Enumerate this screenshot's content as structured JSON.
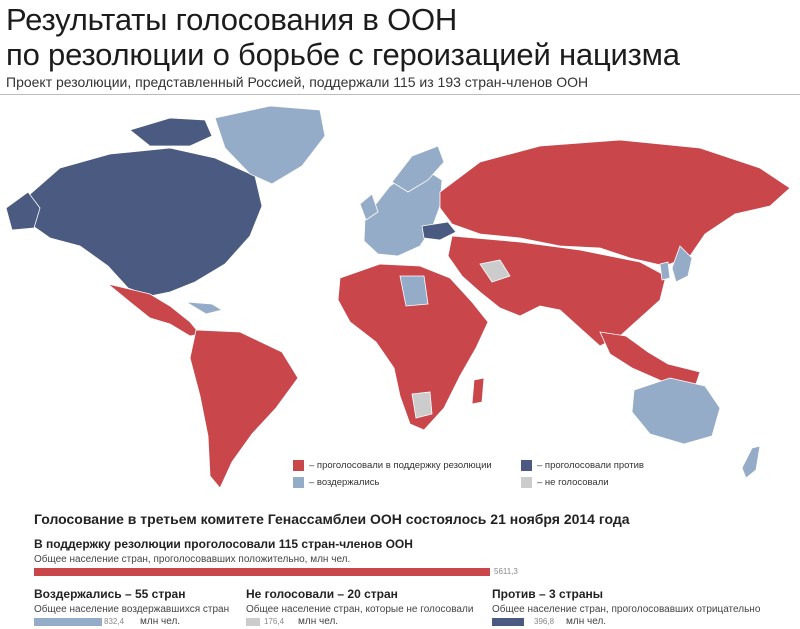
{
  "title_line1": "Результаты голосования в ООН",
  "title_line2": "по резолюции о борьбе с героизацией нацизма",
  "subtitle": "Проект резолюции, представленный Россией, поддержали 115 из 193 стран-членов ООН",
  "colors": {
    "support": "#c9474b",
    "abstain": "#95acc9",
    "against": "#4a5a80",
    "not_voted": "#cccccc",
    "ocean": "#ffffff"
  },
  "legend": {
    "support": "– проголосовали в поддержку резолюции",
    "against": "– проголосовали против",
    "abstain": "– воздержались",
    "not_voted": "– не голосовали"
  },
  "section_title": "Голосование в третьем комитете Генассамблеи ООН состоялось 21 ноября 2014 года",
  "support": {
    "title": "В поддержку резолюции проголосовали 115 стран-членов ООН",
    "subtitle": "Общее население стран, проголосовавших положительно, млн чел.",
    "value": "5611,3",
    "population": 5611.3
  },
  "abstain": {
    "title": "Воздержались – 55 стран",
    "subtitle": "Общее население воздержавшихся стран",
    "value": "832,4",
    "population": 832.4,
    "unit": "млн чел."
  },
  "not_voted": {
    "title": "Не голосовали – 20 стран",
    "subtitle": "Общее население стран, которые не голосовали",
    "value": "176,4",
    "population": 176.4,
    "unit": "млн чел."
  },
  "against": {
    "title": "Против – 3 страны",
    "subtitle": "Общее население стран, проголосовавших отрицательно",
    "value": "396,8",
    "population": 396.8,
    "unit": "млн чел."
  }
}
